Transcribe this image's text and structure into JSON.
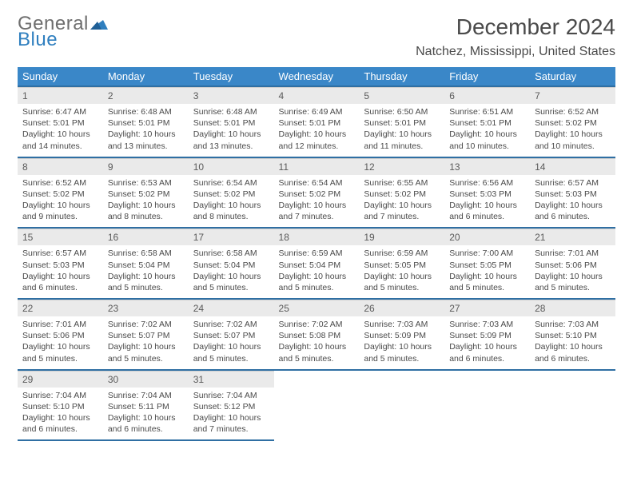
{
  "logo": {
    "text1": "General",
    "text2": "Blue"
  },
  "title": "December 2024",
  "location": "Natchez, Mississippi, United States",
  "colors": {
    "header_bg": "#3a87c8",
    "header_border": "#2f6fa3",
    "daynum_bg": "#eaeaea",
    "text": "#4a4a4a",
    "logo_gray": "#6e6e6e",
    "logo_blue": "#2f7fbf"
  },
  "weekdays": [
    "Sunday",
    "Monday",
    "Tuesday",
    "Wednesday",
    "Thursday",
    "Friday",
    "Saturday"
  ],
  "days": [
    {
      "n": "1",
      "sunrise": "6:47 AM",
      "sunset": "5:01 PM",
      "daylight": "10 hours and 14 minutes."
    },
    {
      "n": "2",
      "sunrise": "6:48 AM",
      "sunset": "5:01 PM",
      "daylight": "10 hours and 13 minutes."
    },
    {
      "n": "3",
      "sunrise": "6:48 AM",
      "sunset": "5:01 PM",
      "daylight": "10 hours and 13 minutes."
    },
    {
      "n": "4",
      "sunrise": "6:49 AM",
      "sunset": "5:01 PM",
      "daylight": "10 hours and 12 minutes."
    },
    {
      "n": "5",
      "sunrise": "6:50 AM",
      "sunset": "5:01 PM",
      "daylight": "10 hours and 11 minutes."
    },
    {
      "n": "6",
      "sunrise": "6:51 AM",
      "sunset": "5:01 PM",
      "daylight": "10 hours and 10 minutes."
    },
    {
      "n": "7",
      "sunrise": "6:52 AM",
      "sunset": "5:02 PM",
      "daylight": "10 hours and 10 minutes."
    },
    {
      "n": "8",
      "sunrise": "6:52 AM",
      "sunset": "5:02 PM",
      "daylight": "10 hours and 9 minutes."
    },
    {
      "n": "9",
      "sunrise": "6:53 AM",
      "sunset": "5:02 PM",
      "daylight": "10 hours and 8 minutes."
    },
    {
      "n": "10",
      "sunrise": "6:54 AM",
      "sunset": "5:02 PM",
      "daylight": "10 hours and 8 minutes."
    },
    {
      "n": "11",
      "sunrise": "6:54 AM",
      "sunset": "5:02 PM",
      "daylight": "10 hours and 7 minutes."
    },
    {
      "n": "12",
      "sunrise": "6:55 AM",
      "sunset": "5:02 PM",
      "daylight": "10 hours and 7 minutes."
    },
    {
      "n": "13",
      "sunrise": "6:56 AM",
      "sunset": "5:03 PM",
      "daylight": "10 hours and 6 minutes."
    },
    {
      "n": "14",
      "sunrise": "6:57 AM",
      "sunset": "5:03 PM",
      "daylight": "10 hours and 6 minutes."
    },
    {
      "n": "15",
      "sunrise": "6:57 AM",
      "sunset": "5:03 PM",
      "daylight": "10 hours and 6 minutes."
    },
    {
      "n": "16",
      "sunrise": "6:58 AM",
      "sunset": "5:04 PM",
      "daylight": "10 hours and 5 minutes."
    },
    {
      "n": "17",
      "sunrise": "6:58 AM",
      "sunset": "5:04 PM",
      "daylight": "10 hours and 5 minutes."
    },
    {
      "n": "18",
      "sunrise": "6:59 AM",
      "sunset": "5:04 PM",
      "daylight": "10 hours and 5 minutes."
    },
    {
      "n": "19",
      "sunrise": "6:59 AM",
      "sunset": "5:05 PM",
      "daylight": "10 hours and 5 minutes."
    },
    {
      "n": "20",
      "sunrise": "7:00 AM",
      "sunset": "5:05 PM",
      "daylight": "10 hours and 5 minutes."
    },
    {
      "n": "21",
      "sunrise": "7:01 AM",
      "sunset": "5:06 PM",
      "daylight": "10 hours and 5 minutes."
    },
    {
      "n": "22",
      "sunrise": "7:01 AM",
      "sunset": "5:06 PM",
      "daylight": "10 hours and 5 minutes."
    },
    {
      "n": "23",
      "sunrise": "7:02 AM",
      "sunset": "5:07 PM",
      "daylight": "10 hours and 5 minutes."
    },
    {
      "n": "24",
      "sunrise": "7:02 AM",
      "sunset": "5:07 PM",
      "daylight": "10 hours and 5 minutes."
    },
    {
      "n": "25",
      "sunrise": "7:02 AM",
      "sunset": "5:08 PM",
      "daylight": "10 hours and 5 minutes."
    },
    {
      "n": "26",
      "sunrise": "7:03 AM",
      "sunset": "5:09 PM",
      "daylight": "10 hours and 5 minutes."
    },
    {
      "n": "27",
      "sunrise": "7:03 AM",
      "sunset": "5:09 PM",
      "daylight": "10 hours and 6 minutes."
    },
    {
      "n": "28",
      "sunrise": "7:03 AM",
      "sunset": "5:10 PM",
      "daylight": "10 hours and 6 minutes."
    },
    {
      "n": "29",
      "sunrise": "7:04 AM",
      "sunset": "5:10 PM",
      "daylight": "10 hours and 6 minutes."
    },
    {
      "n": "30",
      "sunrise": "7:04 AM",
      "sunset": "5:11 PM",
      "daylight": "10 hours and 6 minutes."
    },
    {
      "n": "31",
      "sunrise": "7:04 AM",
      "sunset": "5:12 PM",
      "daylight": "10 hours and 7 minutes."
    }
  ],
  "labels": {
    "sunrise": "Sunrise: ",
    "sunset": "Sunset: ",
    "daylight": "Daylight: "
  }
}
